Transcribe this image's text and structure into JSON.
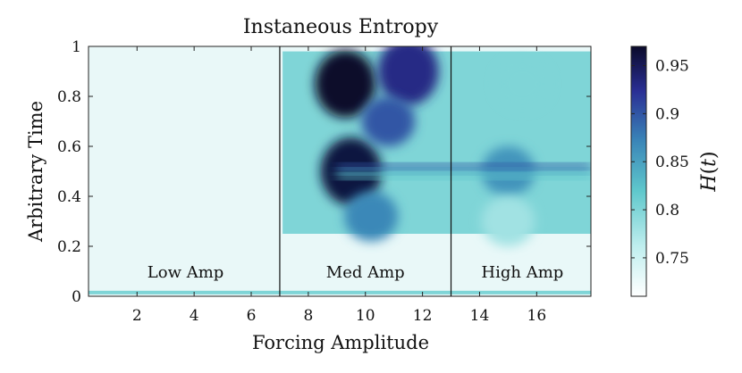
{
  "chart_data": {
    "type": "heatmap",
    "title": "Instaneous Entropy",
    "xlabel": "Forcing Amplitude",
    "ylabel": "Arbitrary Time",
    "xlim": [
      0.3,
      17.9
    ],
    "ylim": [
      0,
      1
    ],
    "xticks": [
      2,
      4,
      6,
      8,
      10,
      12,
      14,
      16
    ],
    "yticks": [
      0,
      0.2,
      0.4,
      0.6,
      0.8,
      1
    ],
    "colorbar": {
      "label": "H(t)",
      "range": [
        0.71,
        0.97
      ],
      "ticks": [
        0.75,
        0.8,
        0.85,
        0.9,
        0.95
      ],
      "colors": [
        "#ffffff",
        "#bfeeee",
        "#5fc8cc",
        "#3a86b8",
        "#2a2f95",
        "#0a0a2a"
      ]
    },
    "dividers": [
      7,
      13
    ],
    "regions": [
      {
        "label": "Low Amp",
        "x_center": 3.7
      },
      {
        "label": "Med Amp",
        "x_center": 10.0
      },
      {
        "label": "High Amp",
        "x_center": 15.5
      }
    ],
    "features": [
      {
        "x": 9.3,
        "y": 0.85,
        "value": 0.97
      },
      {
        "x": 9.5,
        "y": 0.5,
        "value": 0.96
      },
      {
        "x": 11.5,
        "y": 0.9,
        "value": 0.93
      },
      {
        "x": 10.8,
        "y": 0.7,
        "value": 0.9
      },
      {
        "x": 10.2,
        "y": 0.32,
        "value": 0.87
      },
      {
        "x": 15,
        "y": 0.5,
        "value": 0.86
      },
      {
        "x": 15.5,
        "y": 0.85,
        "value": 0.8
      },
      {
        "x": 15,
        "y": 0.3,
        "value": 0.78
      }
    ]
  }
}
